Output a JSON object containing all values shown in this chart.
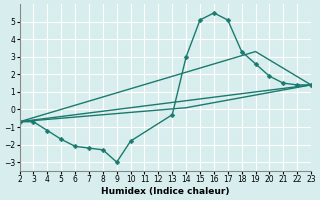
{
  "xlabel": "Humidex (Indice chaleur)",
  "bg_color": "#d8eeee",
  "grid_color": "#ffffff",
  "line_color": "#1a7a6e",
  "xlim": [
    2,
    23
  ],
  "ylim": [
    -3.5,
    6
  ],
  "xticks": [
    2,
    3,
    4,
    5,
    6,
    7,
    8,
    9,
    10,
    11,
    12,
    13,
    14,
    15,
    16,
    17,
    18,
    19,
    20,
    21,
    22,
    23
  ],
  "yticks": [
    -3,
    -2,
    -1,
    0,
    1,
    2,
    3,
    4,
    5
  ],
  "line1_x": [
    2,
    3,
    4,
    5,
    6,
    7,
    8,
    9,
    10,
    13,
    14,
    15,
    16,
    17,
    18,
    19,
    20,
    21,
    22,
    23
  ],
  "line1_y": [
    -0.7,
    -0.7,
    -1.2,
    -1.7,
    -2.1,
    -2.2,
    -2.3,
    -3.0,
    -1.8,
    -0.3,
    3.0,
    5.1,
    5.5,
    5.1,
    3.3,
    2.6,
    1.9,
    1.5,
    1.4,
    1.4
  ],
  "line2_x": [
    2,
    23
  ],
  "line2_y": [
    -0.7,
    1.4
  ],
  "line3_x": [
    2,
    14,
    23
  ],
  "line3_y": [
    -0.7,
    0.1,
    1.4
  ],
  "line4_x": [
    2,
    19,
    23
  ],
  "line4_y": [
    -0.7,
    3.3,
    1.4
  ]
}
